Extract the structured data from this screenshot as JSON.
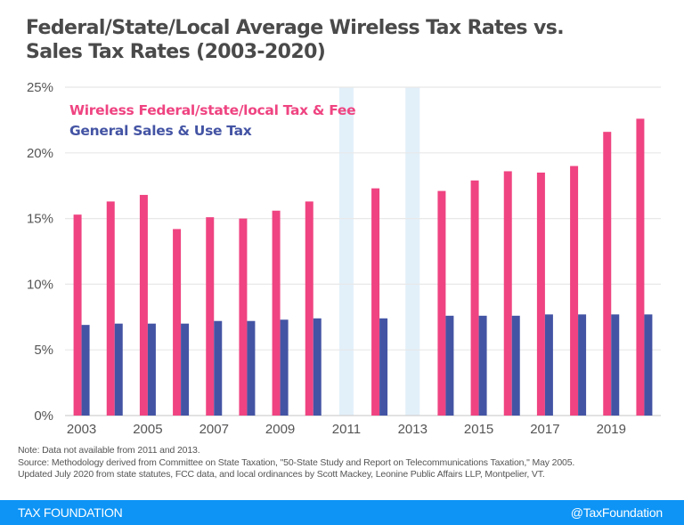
{
  "header": {
    "title_line1": "Federal/State/Local Average Wireless Tax Rates vs.",
    "title_line2": "Sales Tax Rates (2003-2020)"
  },
  "chart_data": {
    "type": "bar",
    "title": "Federal/State/Local Average Wireless Tax Rates vs. Sales Tax Rates (2003-2020)",
    "xlabel": "",
    "ylabel": "",
    "ylim": [
      0,
      25
    ],
    "yticks": [
      0,
      5,
      10,
      15,
      20,
      25
    ],
    "ytick_labels": [
      "0%",
      "5%",
      "10%",
      "15%",
      "20%",
      "25%"
    ],
    "grid": true,
    "legend_position": "top-left",
    "categories": [
      "2003",
      "2004",
      "2005",
      "2006",
      "2007",
      "2008",
      "2009",
      "2010",
      "2011",
      "2012",
      "2013",
      "2014",
      "2015",
      "2016",
      "2017",
      "2018",
      "2019",
      "2020"
    ],
    "xtick_labels": [
      "2003",
      "",
      "2005",
      "",
      "2007",
      "",
      "2009",
      "",
      "2011",
      "",
      "2013",
      "",
      "2015",
      "",
      "2017",
      "",
      "2019",
      ""
    ],
    "missing_categories": [
      "2011",
      "2013"
    ],
    "series": [
      {
        "name": "Wireless Federal/state/local Tax & Fee",
        "color": "#ef4481",
        "values": [
          15.3,
          16.3,
          16.8,
          14.2,
          15.1,
          15.0,
          15.6,
          16.3,
          null,
          17.3,
          null,
          17.1,
          17.9,
          18.6,
          18.5,
          19.0,
          21.6,
          22.6
        ]
      },
      {
        "name": "General Sales & Use Tax",
        "color": "#4454a4",
        "values": [
          6.9,
          7.0,
          7.0,
          7.0,
          7.2,
          7.2,
          7.3,
          7.4,
          null,
          7.4,
          null,
          7.6,
          7.6,
          7.6,
          7.7,
          7.7,
          7.7,
          7.7
        ]
      }
    ],
    "missing_highlight_color": "#e2f0fa",
    "gridline_color": "#e8e8e8"
  },
  "notes": {
    "line1": "Note: Data not available from 2011 and 2013.",
    "line2": "Source: Methodology derived from Committee on State Taxation, \"50-State Study and Report on Telecommunications Taxation,\"  May 2005.",
    "line3": "Updated July 2020 from state statutes, FCC data, and local ordinances by Scott Mackey, Leonine Public Affairs LLP, Montpelier, VT."
  },
  "footer": {
    "brand": "TAX FOUNDATION",
    "handle": "@TaxFoundation",
    "color": "#0d94f5"
  }
}
